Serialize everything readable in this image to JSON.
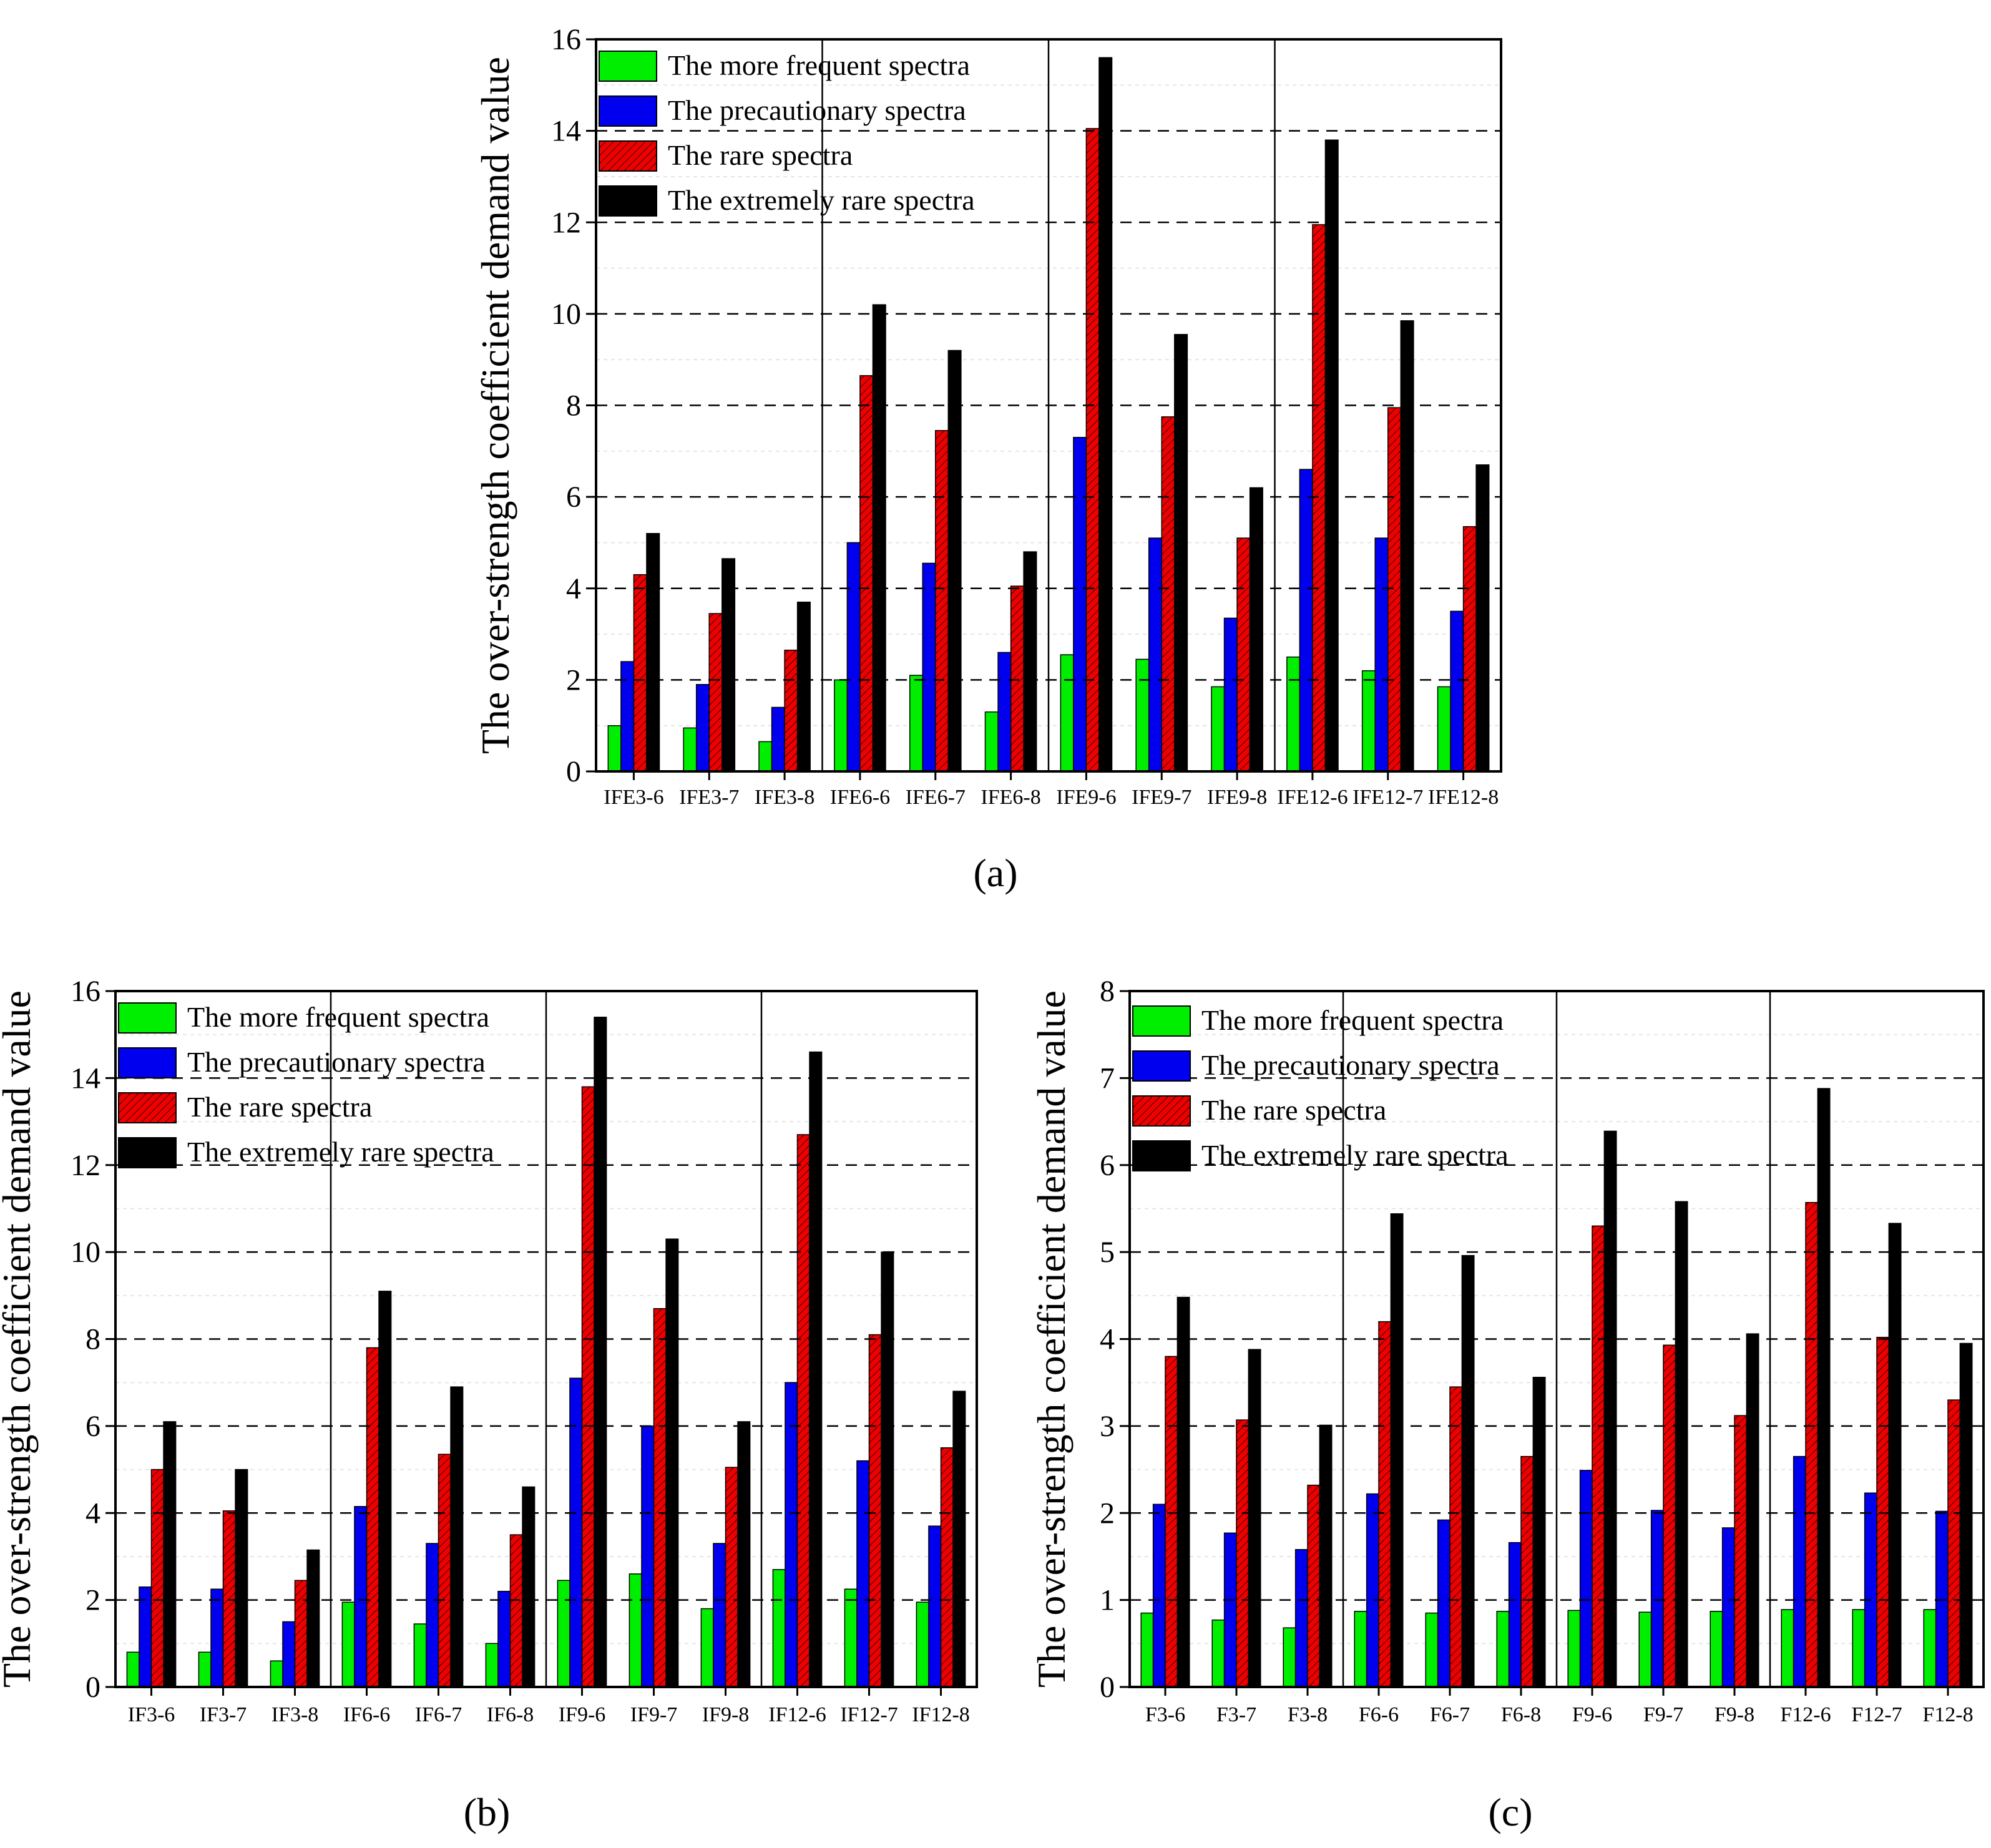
{
  "legend": {
    "series": [
      {
        "name": "The more frequent spectra",
        "color": "#00ee00"
      },
      {
        "name": "The precautionary spectra",
        "color": "#0000ee"
      },
      {
        "name": "The rare spectra",
        "color": "#ee0000"
      },
      {
        "name": "The extremely rare spectra",
        "color": "#000000"
      }
    ]
  },
  "chart_data": [
    {
      "type": "bar",
      "panel": "(a)",
      "ylabel": "The over-strength coefficient demand value",
      "ylim": [
        0,
        16
      ],
      "yticks": [
        0,
        2,
        4,
        6,
        8,
        10,
        12,
        14,
        16
      ],
      "categories": [
        "IFE3-6",
        "IFE3-7",
        "IFE3-8",
        "IFE6-6",
        "IFE6-7",
        "IFE6-8",
        "IFE9-6",
        "IFE9-7",
        "IFE9-8",
        "IFE12-6",
        "IFE12-7",
        "IFE12-8"
      ],
      "series": [
        {
          "name": "The more frequent spectra",
          "values": [
            1.0,
            0.95,
            0.65,
            2.0,
            2.1,
            1.3,
            2.55,
            2.45,
            1.85,
            2.5,
            2.2,
            1.85
          ]
        },
        {
          "name": "The precautionary spectra",
          "values": [
            2.4,
            1.9,
            1.4,
            5.0,
            4.55,
            2.6,
            7.3,
            5.1,
            3.35,
            6.6,
            5.1,
            3.5
          ]
        },
        {
          "name": "The rare spectra",
          "values": [
            4.3,
            3.45,
            2.65,
            8.65,
            7.45,
            4.05,
            14.05,
            7.75,
            5.1,
            11.95,
            7.95,
            5.35
          ]
        },
        {
          "name": "The extremely rare spectra",
          "values": [
            5.2,
            4.65,
            3.7,
            10.2,
            9.2,
            4.8,
            15.6,
            9.55,
            6.2,
            13.8,
            9.85,
            6.7
          ]
        }
      ],
      "group_separators_after": [
        "IFE3-8",
        "IFE6-8",
        "IFE9-8"
      ]
    },
    {
      "type": "bar",
      "panel": "(b)",
      "ylabel": "The over-strength coefficient demand value",
      "ylim": [
        0,
        16
      ],
      "yticks": [
        0,
        2,
        4,
        6,
        8,
        10,
        12,
        14,
        16
      ],
      "categories": [
        "IF3-6",
        "IF3-7",
        "IF3-8",
        "IF6-6",
        "IF6-7",
        "IF6-8",
        "IF9-6",
        "IF9-7",
        "IF9-8",
        "IF12-6",
        "IF12-7",
        "IF12-8"
      ],
      "series": [
        {
          "name": "The more frequent spectra",
          "values": [
            0.8,
            0.8,
            0.6,
            1.95,
            1.45,
            1.0,
            2.45,
            2.6,
            1.8,
            2.7,
            2.25,
            1.95
          ]
        },
        {
          "name": "The precautionary spectra",
          "values": [
            2.3,
            2.25,
            1.5,
            4.15,
            3.3,
            2.2,
            7.1,
            6.0,
            3.3,
            7.0,
            5.2,
            3.7
          ]
        },
        {
          "name": "The rare spectra",
          "values": [
            5.0,
            4.05,
            2.45,
            7.8,
            5.35,
            3.5,
            13.8,
            8.7,
            5.05,
            12.7,
            8.1,
            5.5
          ]
        },
        {
          "name": "The extremely rare spectra",
          "values": [
            6.1,
            5.0,
            3.15,
            9.1,
            6.9,
            4.6,
            15.4,
            10.3,
            6.1,
            14.6,
            10.0,
            6.8
          ]
        }
      ],
      "group_separators_after": [
        "IF3-8",
        "IF6-8",
        "IF9-8"
      ]
    },
    {
      "type": "bar",
      "panel": "(c)",
      "ylabel": "The over-strength coefficient demand value",
      "ylim": [
        0,
        8
      ],
      "yticks": [
        0,
        1,
        2,
        3,
        4,
        5,
        6,
        7,
        8
      ],
      "categories": [
        "F3-6",
        "F3-7",
        "F3-8",
        "F6-6",
        "F6-7",
        "F6-8",
        "F9-6",
        "F9-7",
        "F9-8",
        "F12-6",
        "F12-7",
        "F12-8"
      ],
      "series": [
        {
          "name": "The more frequent spectra",
          "values": [
            0.85,
            0.77,
            0.68,
            0.87,
            0.85,
            0.87,
            0.88,
            0.86,
            0.87,
            0.89,
            0.89,
            0.89
          ]
        },
        {
          "name": "The precautionary spectra",
          "values": [
            2.1,
            1.77,
            1.58,
            2.22,
            1.92,
            1.66,
            2.49,
            2.03,
            1.83,
            2.65,
            2.23,
            2.02
          ]
        },
        {
          "name": "The rare spectra",
          "values": [
            3.8,
            3.07,
            2.32,
            4.2,
            3.45,
            2.65,
            5.3,
            3.93,
            3.12,
            5.57,
            4.02,
            3.3
          ]
        },
        {
          "name": "The extremely rare spectra",
          "values": [
            4.48,
            3.88,
            3.01,
            5.44,
            4.96,
            3.56,
            6.39,
            5.58,
            4.06,
            6.88,
            5.33,
            3.95
          ]
        }
      ],
      "group_separators_after": [
        "F3-8",
        "F6-8",
        "F9-8"
      ]
    }
  ]
}
